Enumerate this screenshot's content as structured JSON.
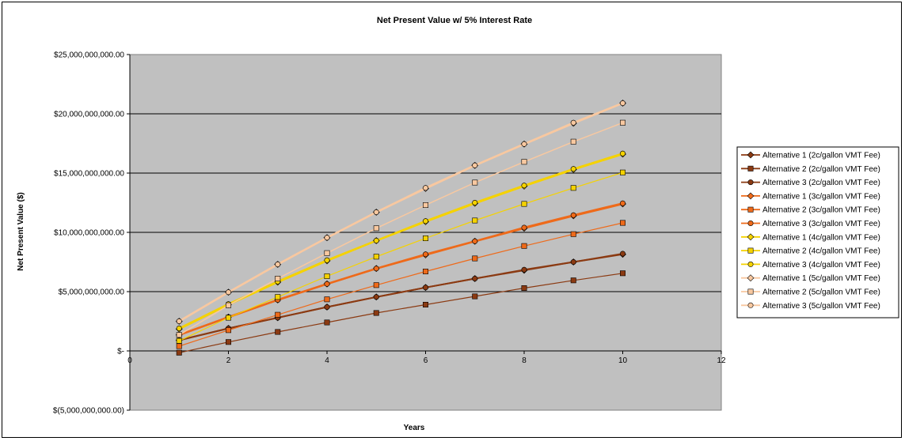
{
  "chart_data": {
    "type": "line",
    "title": "Net Present Value w/ 5% Interest Rate",
    "xlabel": "Years",
    "ylabel": "Net Present Value ($)",
    "xlim": [
      0,
      12
    ],
    "ylim": [
      -5000000000,
      25000000000
    ],
    "x_ticks": [
      0,
      2,
      4,
      6,
      8,
      10,
      12
    ],
    "y_ticks": [
      {
        "value": 25000000000,
        "label": "$25,000,000,000.00"
      },
      {
        "value": 20000000000,
        "label": "$20,000,000,000.00"
      },
      {
        "value": 15000000000,
        "label": "$15,000,000,000.00"
      },
      {
        "value": 10000000000,
        "label": "$10,000,000,000.00"
      },
      {
        "value": 5000000000,
        "label": "$5,000,000,000.00"
      },
      {
        "value": 0,
        "label": "$-"
      },
      {
        "value": -5000000000,
        "label": "$(5,000,000,000.00)"
      }
    ],
    "grid": "horizontal",
    "plot_background": "#c0c0c0",
    "legend_position": "right",
    "x": [
      1,
      2,
      3,
      4,
      5,
      6,
      7,
      8,
      9,
      10
    ],
    "series": [
      {
        "name": "Alternative 1 (2c/gallon VMT Fee)",
        "color": "#8b3a12",
        "marker": "diamond",
        "width": 2,
        "values": [
          900000000,
          1900000000,
          2800000000,
          3700000000,
          4550000000,
          5350000000,
          6100000000,
          6800000000,
          7500000000,
          8150000000
        ]
      },
      {
        "name": "Alternative 2 (2c/gallon VMT Fee)",
        "color": "#8b3a12",
        "marker": "square",
        "width": 1.2,
        "values": [
          -150000000,
          750000000,
          1600000000,
          2400000000,
          3200000000,
          3900000000,
          4600000000,
          5300000000,
          5950000000,
          6550000000
        ]
      },
      {
        "name": "Alternative 3 (2c/gallon VMT Fee)",
        "color": "#8b3a12",
        "marker": "circle",
        "width": 2,
        "values": [
          900000000,
          1900000000,
          2800000000,
          3700000000,
          4550000000,
          5350000000,
          6100000000,
          6850000000,
          7500000000,
          8200000000
        ]
      },
      {
        "name": "Alternative 1 (3c/gallon VMT Fee)",
        "color": "#ee6a1a",
        "marker": "diamond",
        "width": 2.5,
        "values": [
          1350000000,
          2850000000,
          4300000000,
          5650000000,
          6950000000,
          8100000000,
          9250000000,
          10350000000,
          11400000000,
          12400000000
        ]
      },
      {
        "name": "Alternative 2 (3c/gallon VMT Fee)",
        "color": "#ee6a1a",
        "marker": "square",
        "width": 1.2,
        "values": [
          400000000,
          1750000000,
          3050000000,
          4350000000,
          5550000000,
          6700000000,
          7800000000,
          8850000000,
          9850000000,
          10800000000
        ]
      },
      {
        "name": "Alternative 3 (3c/gallon VMT Fee)",
        "color": "#ee6a1a",
        "marker": "circle",
        "width": 2.5,
        "values": [
          1350000000,
          2850000000,
          4300000000,
          5650000000,
          6950000000,
          8150000000,
          9250000000,
          10400000000,
          11450000000,
          12450000000
        ]
      },
      {
        "name": "Alternative 1 (4c/gallon VMT Fee)",
        "color": "#f5d200",
        "marker": "diamond",
        "width": 2.5,
        "values": [
          1850000000,
          3900000000,
          5800000000,
          7600000000,
          9300000000,
          10900000000,
          12450000000,
          13900000000,
          15300000000,
          16600000000
        ]
      },
      {
        "name": "Alternative 2 (4c/gallon VMT Fee)",
        "color": "#f5d200",
        "marker": "square",
        "width": 1.2,
        "values": [
          850000000,
          2800000000,
          4550000000,
          6300000000,
          7950000000,
          9500000000,
          11000000000,
          12400000000,
          13750000000,
          15050000000
        ]
      },
      {
        "name": "Alternative 3 (4c/gallon VMT Fee)",
        "color": "#f5d200",
        "marker": "circle",
        "width": 2.5,
        "values": [
          1900000000,
          3950000000,
          5850000000,
          7650000000,
          9300000000,
          10950000000,
          12500000000,
          13950000000,
          15350000000,
          16650000000
        ]
      },
      {
        "name": "Alternative 1 (5c/gallon VMT Fee)",
        "color": "#f8c8a0",
        "marker": "diamond",
        "width": 2.5,
        "values": [
          2500000000,
          4950000000,
          7300000000,
          9550000000,
          11700000000,
          13700000000,
          15650000000,
          17450000000,
          19200000000,
          20900000000
        ]
      },
      {
        "name": "Alternative 2 (5c/gallon VMT Fee)",
        "color": "#f8c8a0",
        "marker": "square",
        "width": 1.5,
        "values": [
          1350000000,
          3850000000,
          6100000000,
          8250000000,
          10350000000,
          12300000000,
          14200000000,
          15950000000,
          17650000000,
          19250000000
        ]
      },
      {
        "name": "Alternative 3 (5c/gallon VMT Fee)",
        "color": "#f8c8a0",
        "marker": "circle",
        "width": 2.5,
        "values": [
          2500000000,
          4950000000,
          7300000000,
          9550000000,
          11700000000,
          13750000000,
          15650000000,
          17450000000,
          19250000000,
          20900000000
        ]
      }
    ]
  }
}
